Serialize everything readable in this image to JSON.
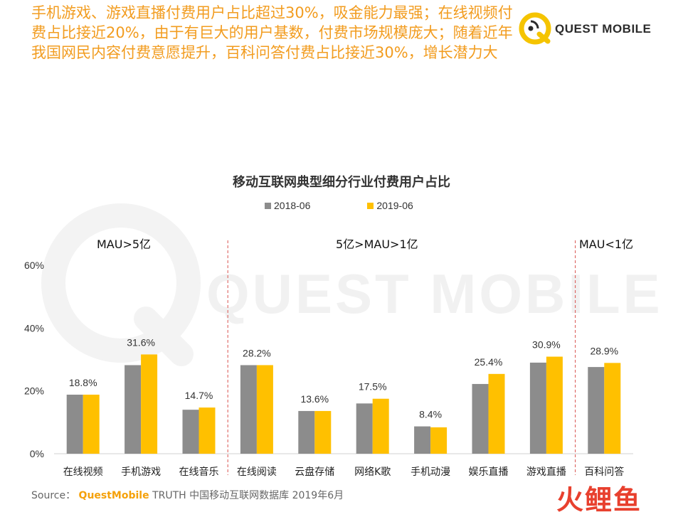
{
  "headline": "手机游戏、游戏直播付费用户占比超过30%，吸金能力最强；在线视频付费占比接近20%，由于有巨大的用户基数，付费市场规模庞大；随着近年我国网民内容付费意愿提升，百科问答付费占比接近30%，增长潜力大",
  "logo": {
    "text": "QUEST MOBILE",
    "color": "#f5c400"
  },
  "watermark": "QUEST MOBILE",
  "group_labels": [
    "MAU>5亿",
    "5亿>MAU>1亿",
    "MAU<1亿"
  ],
  "colors": {
    "series_2018": "#8c8c8c",
    "series_2019": "#ffc000",
    "headline": "#f29c1f",
    "divider": "#d9534f"
  },
  "source": {
    "prefix": "Source：",
    "brand": "QuestMobile",
    "rest": "TRUTH 中国移动互联网数据库 2019年6月"
  },
  "footer_mark": "火鲤鱼",
  "chart_data": {
    "type": "bar",
    "title": "移动互联网典型细分行业付费用户占比",
    "categories": [
      "在线视频",
      "手机游戏",
      "在线音乐",
      "在线阅读",
      "云盘存储",
      "网络K歌",
      "手机动漫",
      "娱乐直播",
      "游戏直播",
      "百科问答"
    ],
    "series": [
      {
        "name": "2018-06",
        "values": [
          18.8,
          28.2,
          14.0,
          28.2,
          13.6,
          16.0,
          8.7,
          22.2,
          29.0,
          27.6
        ]
      },
      {
        "name": "2019-06",
        "values": [
          18.8,
          31.6,
          14.7,
          28.2,
          13.6,
          17.5,
          8.4,
          25.4,
          30.9,
          28.9
        ]
      }
    ],
    "data_labels": [
      "18.8%",
      "31.6%",
      "14.7%",
      "28.2%",
      "13.6%",
      "17.5%",
      "8.4%",
      "25.4%",
      "30.9%",
      "28.9%"
    ],
    "yticks": [
      "0%",
      "20%",
      "40%",
      "60%"
    ],
    "ylim": [
      0,
      60
    ],
    "legend_position": "top-center"
  }
}
